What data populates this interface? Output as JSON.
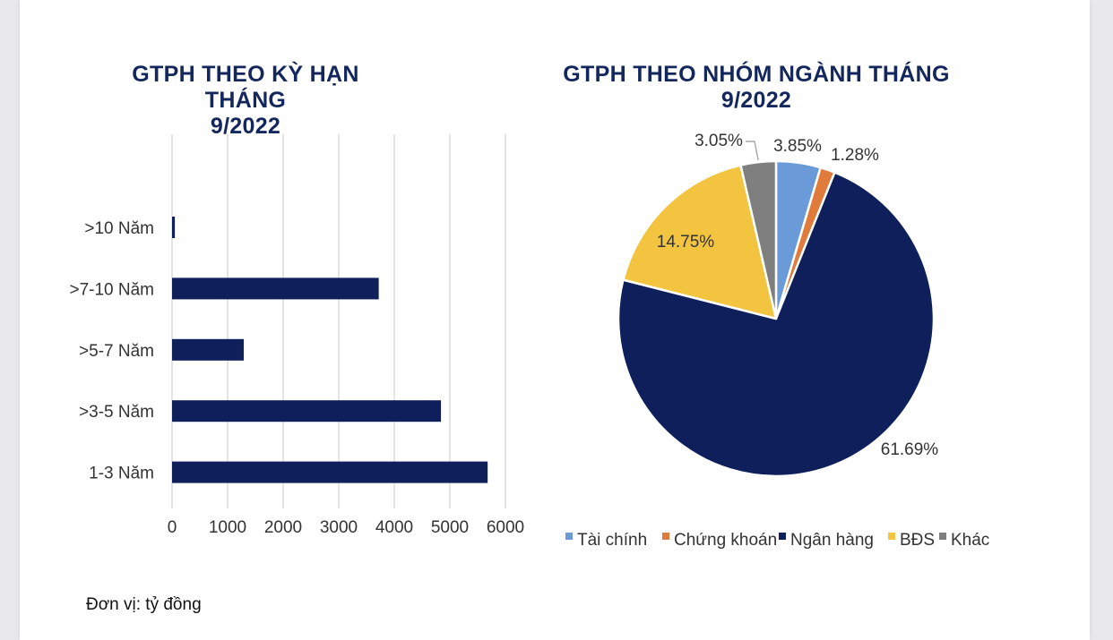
{
  "colors": {
    "bar": "#0e1f5c",
    "grid": "#d9d9d9",
    "title": "#14275c",
    "text": "#333333",
    "pie_slice_stroke": "#ffffff"
  },
  "bar_chart": {
    "title_line1": "GTPH THEO KỲ HẠN THÁNG",
    "title_line2": "9/2022"
  },
  "pie_chart": {
    "title_line1": "GTPH THEO NHÓM NGÀNH THÁNG",
    "title_line2": "9/2022"
  },
  "footnote": "Đơn vị: tỷ đồng",
  "chart_data": [
    {
      "type": "bar",
      "orientation": "horizontal",
      "title": "GTPH THEO KỲ HẠN THÁNG 9/2022",
      "categories": [
        ">10 Năm",
        ">7-10 Năm",
        ">5-7 Năm",
        ">3-5 Năm",
        "1-3 Năm"
      ],
      "values": [
        50,
        3720,
        1290,
        4840,
        5680
      ],
      "xlim": [
        0,
        6000
      ],
      "xticks": [
        0,
        1000,
        2000,
        3000,
        4000,
        5000,
        6000
      ],
      "xtick_labels": [
        "0",
        "1000",
        "2000",
        "3000",
        "4000",
        "5000",
        "6000"
      ],
      "grid": "vertical",
      "color": "#0e1f5c"
    },
    {
      "type": "pie",
      "title": "GTPH THEO NHÓM NGÀNH THÁNG 9/2022",
      "labels": [
        "Tài chính",
        "Chứng khoán",
        "Ngân hàng",
        "BĐS",
        "Khác"
      ],
      "values": [
        3.85,
        1.28,
        61.69,
        14.75,
        3.05
      ],
      "value_labels": [
        "3.85%",
        "1.28%",
        "61.69%",
        "14.75%",
        "3.05%"
      ],
      "colors": [
        "#6a9bd8",
        "#e07b3c",
        "#0e1f5c",
        "#f2c440",
        "#7f7f7f"
      ],
      "legend_position": "bottom"
    }
  ]
}
